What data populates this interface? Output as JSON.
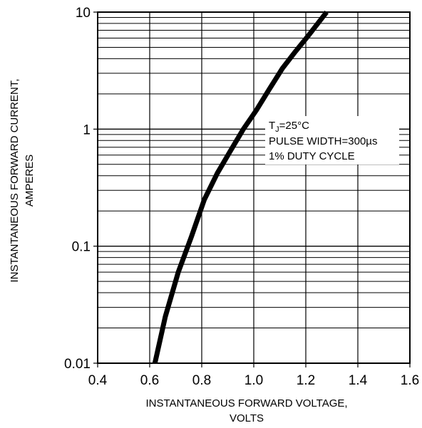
{
  "chart_data": {
    "type": "line",
    "title": "",
    "xlabel": [
      "INSTANTANEOUS FORWARD VOLTAGE,",
      "VOLTS"
    ],
    "ylabel": [
      "INSTANTANEOUS FORWARD CURRENT,",
      "AMPERES"
    ],
    "xlim": [
      0.4,
      1.6
    ],
    "ylim": [
      0.01,
      10
    ],
    "yscale": "log",
    "grid": true,
    "x_ticks": [
      "0.4",
      "0.6",
      "0.8",
      "1.0",
      "1.2",
      "1.4",
      "1.6"
    ],
    "y_ticks": [
      "0.01",
      "0.1",
      "1",
      "10"
    ],
    "annotation": {
      "line1_main": "T",
      "line1_sub": "J",
      "line1_rest": "=25°C",
      "line2": "PULSE WIDTH=300µs",
      "line3": "1% DUTY CYCLE"
    },
    "series": [
      {
        "x": [
          0.62,
          0.66,
          0.71,
          0.76,
          0.81,
          0.86,
          0.91,
          0.96,
          1.01,
          1.06,
          1.11,
          1.16,
          1.21,
          1.28
        ],
        "y": [
          0.01,
          0.025,
          0.06,
          0.12,
          0.25,
          0.42,
          0.65,
          1.0,
          1.45,
          2.2,
          3.3,
          4.6,
          6.3,
          10.0
        ]
      }
    ],
    "colors": {
      "line": "#000000",
      "grid": "#000000",
      "background": "#ffffff"
    }
  }
}
